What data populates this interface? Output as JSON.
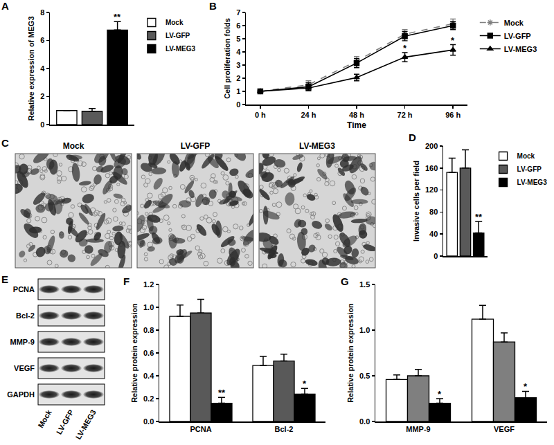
{
  "chart_data": [
    {
      "panel": "A",
      "type": "bar",
      "categories": [
        null
      ],
      "ylabel": "Relative expression of MEG3",
      "ylim": [
        0,
        8
      ],
      "yticks": [
        0,
        2,
        4,
        6,
        8
      ],
      "grid": false,
      "legend": "right",
      "series": [
        {
          "name": "Mock",
          "color": "#ffffff",
          "values": [
            1.0
          ],
          "errors": [
            0
          ],
          "significance": [
            null
          ]
        },
        {
          "name": "LV-GFP",
          "color": "#595959",
          "values": [
            0.95
          ],
          "errors": [
            0.2
          ],
          "significance": [
            null
          ]
        },
        {
          "name": "LV-MEG3",
          "color": "#000000",
          "values": [
            6.75
          ],
          "errors": [
            0.6
          ],
          "significance": [
            "**"
          ]
        }
      ]
    },
    {
      "panel": "B",
      "type": "line",
      "categories": [
        "0 h",
        "24 h",
        "48 h",
        "72 h",
        "96 h"
      ],
      "xlabel": "Time",
      "ylabel": "Cell proliferation folds",
      "ylim": [
        0,
        7
      ],
      "yticks": [
        0,
        1,
        2,
        3,
        4,
        5,
        6,
        7
      ],
      "grid": false,
      "legend": "right",
      "series": [
        {
          "name": "Mock",
          "color": "#808080",
          "line_style": "dashed",
          "marker": "asterisk",
          "values": [
            1.0,
            1.5,
            3.3,
            5.35,
            6.15
          ],
          "errors": [
            0.05,
            0.3,
            0.35,
            0.35,
            0.35
          ],
          "significance": [
            null,
            null,
            null,
            null,
            null
          ]
        },
        {
          "name": "LV-GFP",
          "color": "#000000",
          "line_style": "solid",
          "marker": "square",
          "values": [
            1.0,
            1.35,
            3.15,
            5.2,
            6.0
          ],
          "errors": [
            0.05,
            0.3,
            0.35,
            0.35,
            0.3
          ],
          "significance": [
            null,
            null,
            null,
            null,
            null
          ]
        },
        {
          "name": "LV-MEG3",
          "color": "#000000",
          "line_style": "solid",
          "marker": "triangle",
          "values": [
            1.0,
            1.25,
            2.05,
            3.6,
            4.15
          ],
          "errors": [
            0.05,
            0.2,
            0.25,
            0.35,
            0.4
          ],
          "significance": [
            null,
            null,
            null,
            "*",
            "*"
          ]
        }
      ]
    },
    {
      "panel": "D",
      "type": "bar",
      "categories": [
        null
      ],
      "ylabel": "Invasive cells per field",
      "ylim": [
        0,
        200
      ],
      "yticks": [
        0,
        40,
        80,
        120,
        160,
        200
      ],
      "grid": false,
      "legend": "right",
      "series": [
        {
          "name": "Mock",
          "color": "#ffffff",
          "values": [
            152
          ],
          "errors": [
            26
          ],
          "significance": [
            null
          ]
        },
        {
          "name": "LV-GFP",
          "color": "#595959",
          "values": [
            160
          ],
          "errors": [
            33
          ],
          "significance": [
            null
          ]
        },
        {
          "name": "LV-MEG3",
          "color": "#000000",
          "values": [
            42
          ],
          "errors": [
            21
          ],
          "significance": [
            "**"
          ]
        }
      ]
    },
    {
      "panel": "F",
      "type": "bar",
      "categories": [
        "PCNA",
        "Bcl-2"
      ],
      "ylabel": "Relative protein expression",
      "ylim": [
        0,
        1.2
      ],
      "yticks": [
        {
          "value": 0,
          "label": "0.0"
        },
        0.2,
        0.4,
        0.6,
        0.8,
        {
          "value": 1,
          "label": "1.0"
        },
        1.2
      ],
      "grid": false,
      "series": [
        {
          "color": "#ffffff",
          "values": [
            0.92,
            0.49
          ],
          "errors": [
            0.1,
            0.08
          ],
          "significance": [
            null,
            null
          ]
        },
        {
          "color": "#595959",
          "values": [
            0.95,
            0.53
          ],
          "errors": [
            0.12,
            0.06
          ],
          "significance": [
            null,
            null
          ]
        },
        {
          "color": "#000000",
          "values": [
            0.16,
            0.24
          ],
          "errors": [
            0.05,
            0.05
          ],
          "significance": [
            "**",
            "*"
          ]
        }
      ]
    },
    {
      "panel": "G",
      "type": "bar",
      "categories": [
        "MMP-9",
        "VEGF"
      ],
      "ylabel": "Relative protein expression",
      "ylim": [
        0,
        1.5
      ],
      "yticks": [
        {
          "value": 0,
          "label": "0.0"
        },
        0.5,
        {
          "value": 1,
          "label": "1.0"
        },
        1.5
      ],
      "grid": false,
      "series": [
        {
          "color": "#ffffff",
          "values": [
            0.46,
            1.12
          ],
          "errors": [
            0.05,
            0.15
          ],
          "significance": [
            null,
            null
          ]
        },
        {
          "color": "#7f7f7f",
          "values": [
            0.5,
            0.87
          ],
          "errors": [
            0.07,
            0.1
          ],
          "significance": [
            null,
            null
          ]
        },
        {
          "color": "#000000",
          "values": [
            0.2,
            0.26
          ],
          "errors": [
            0.05,
            0.07
          ],
          "significance": [
            "*",
            "*"
          ]
        }
      ]
    }
  ],
  "micrographs": {
    "panel": "C",
    "labels": [
      "Mock",
      "LV-GFP",
      "LV-MEG3"
    ]
  },
  "western_blot": {
    "panel": "E",
    "rows": [
      "PCNA",
      "Bcl-2",
      "MMP-9",
      "VEGF",
      "GAPDH"
    ],
    "columns": [
      "Mock",
      "LV-GFP",
      "LV-MEG3"
    ]
  }
}
